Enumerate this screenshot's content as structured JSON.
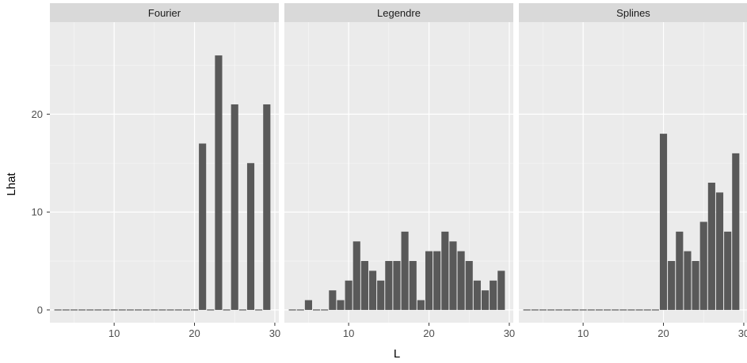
{
  "chart_data": {
    "type": "bar",
    "xlabel": "L",
    "ylabel": "Lhat",
    "xlim": [
      2,
      30.5
    ],
    "ylim": [
      -1.3,
      29.4
    ],
    "x_ticks": [
      10,
      20,
      30
    ],
    "y_ticks": [
      0,
      10,
      20
    ],
    "grid": true,
    "colors": {
      "bar": "#595959",
      "panel_bg": "#ebebeb",
      "grid_major": "#ffffff",
      "strip_bg": "#d9d9d9"
    },
    "panels": [
      {
        "name": "Fourier",
        "x": [
          3,
          4,
          5,
          6,
          7,
          8,
          9,
          10,
          11,
          12,
          13,
          14,
          15,
          16,
          17,
          18,
          19,
          20,
          21,
          22,
          23,
          24,
          25,
          26,
          27,
          28,
          29
        ],
        "values": [
          0,
          0,
          0,
          0,
          0,
          0,
          0,
          0,
          0,
          0,
          0,
          0,
          0,
          0,
          0,
          0,
          0,
          0,
          17,
          0,
          26,
          0,
          21,
          0,
          15,
          0,
          21
        ]
      },
      {
        "name": "Legendre",
        "x": [
          3,
          4,
          5,
          6,
          7,
          8,
          9,
          10,
          11,
          12,
          13,
          14,
          15,
          16,
          17,
          18,
          19,
          20,
          21,
          22,
          23,
          24,
          25,
          26,
          27,
          28,
          29
        ],
        "values": [
          0,
          0,
          1,
          0,
          0,
          2,
          1,
          3,
          7,
          5,
          4,
          3,
          5,
          5,
          8,
          5,
          1,
          6,
          6,
          8,
          7,
          6,
          5,
          3,
          2,
          3,
          4
        ]
      },
      {
        "name": "Splines",
        "x": [
          3,
          4,
          5,
          6,
          7,
          8,
          9,
          10,
          11,
          12,
          13,
          14,
          15,
          16,
          17,
          18,
          19,
          20,
          21,
          22,
          23,
          24,
          25,
          26,
          27,
          28,
          29
        ],
        "values": [
          0,
          0,
          0,
          0,
          0,
          0,
          0,
          0,
          0,
          0,
          0,
          0,
          0,
          0,
          0,
          0,
          0,
          18,
          5,
          8,
          6,
          5,
          9,
          13,
          12,
          8,
          16
        ]
      }
    ]
  }
}
